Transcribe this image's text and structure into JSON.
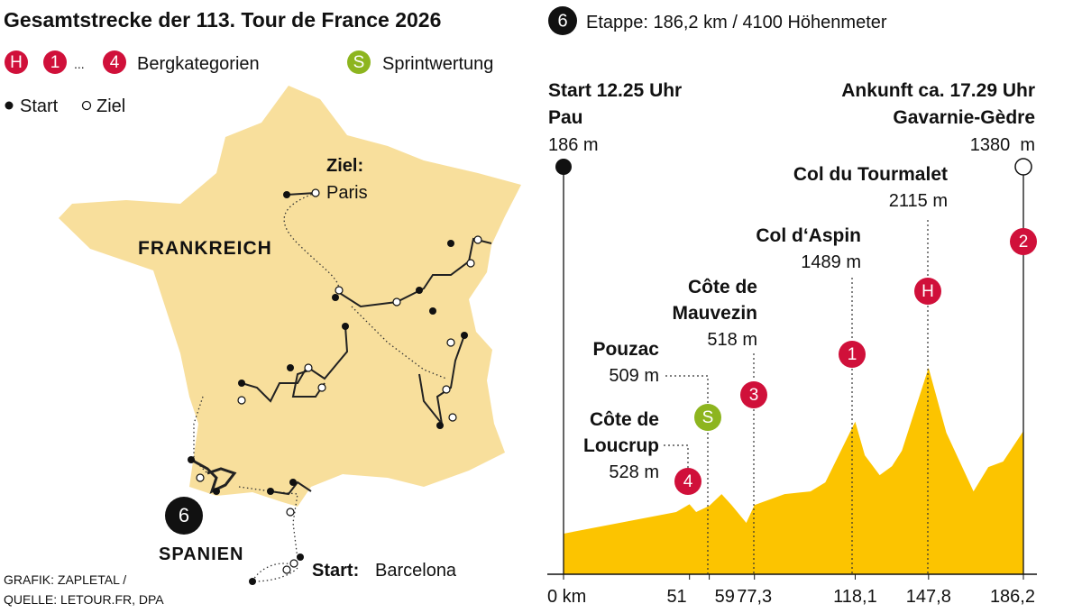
{
  "header": {
    "title": "Gesamtstrecke der 113. Tour de France 2026",
    "stage_number": "6",
    "stage_info": "Etappe: 186,2 km / 4100 Höhenmeter"
  },
  "legend": {
    "badges": [
      "H",
      "1",
      "...",
      "4"
    ],
    "mountain": "Bergkategorien",
    "sprint_badge": "S",
    "sprint": "Sprintwertung",
    "start": "Start",
    "finish": "Ziel"
  },
  "map": {
    "finish_label": "Ziel:",
    "finish_city": "Paris",
    "country": "FRANKREICH",
    "neighbor": "SPANIEN",
    "stage_badge": "6",
    "start_label": "Start:",
    "start_city": "Barcelona"
  },
  "credits": [
    "GRAFIK: ZAPLETAL /",
    "QUELLE: LETOUR.FR, DPA"
  ],
  "profile": {
    "start": {
      "lines": [
        "Start 12.25 Uhr",
        "Pau"
      ],
      "elevation": "186 m"
    },
    "finish": {
      "lines": [
        "Ankunft ca. 17.29 Uhr",
        "Gavarnie-Gèdre"
      ],
      "elevation": "1380  m"
    },
    "climbs": [
      {
        "name": [
          "Côte de",
          "Loucrup"
        ],
        "elevation": "528 m",
        "badge": "4"
      },
      {
        "name": [
          "Pouzac"
        ],
        "elevation": "509 m",
        "badge": "S"
      },
      {
        "name": [
          "Côte de",
          "Mauvezin"
        ],
        "elevation": "518 m",
        "badge": "3"
      },
      {
        "name": [
          "Col d‘Aspin"
        ],
        "elevation": "1489 m",
        "badge": "1"
      },
      {
        "name": [
          "Col du Tourmalet"
        ],
        "elevation": "2115 m",
        "badge": "H"
      },
      {
        "badge": "2"
      }
    ],
    "color": "#fcc400",
    "km": [
      0,
      45.6,
      51,
      53.7,
      59,
      64,
      68,
      74,
      77.3,
      89.5,
      100,
      106,
      118.1,
      122,
      128,
      133,
      137,
      147.8,
      155,
      166,
      172,
      178,
      186.2
    ],
    "elevation": [
      186,
      437,
      528,
      437,
      509,
      646,
      520,
      312,
      518,
      646,
      677,
      782,
      1489,
      1097,
      866,
      971,
      1150,
      2115,
      1360,
      677,
      960,
      1024,
      1380
    ],
    "xlim": [
      0,
      186.2
    ],
    "ylim": [
      0,
      2115
    ],
    "xticks": [
      {
        "value": 0,
        "label": "0 km"
      },
      51,
      59,
      {
        "value": 77.3,
        "label": "77,3"
      },
      {
        "value": 118.1,
        "label": "118,1"
      },
      {
        "value": 147.8,
        "label": "147,8"
      },
      {
        "value": 186.2,
        "label": "186,2"
      }
    ]
  }
}
